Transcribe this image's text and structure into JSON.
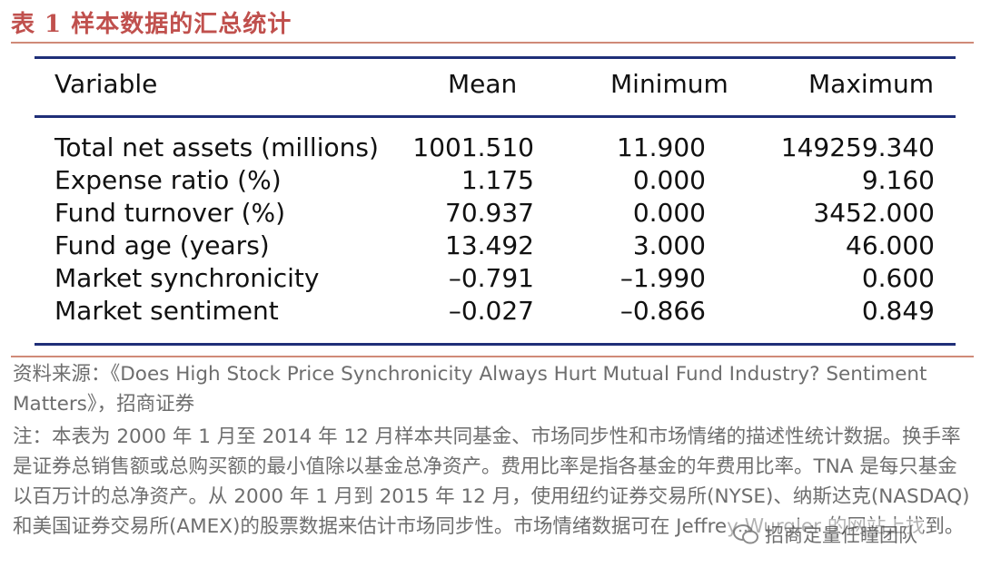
{
  "title": "表 1  样本数据的汇总统计",
  "table": {
    "headers": [
      "Variable",
      "Mean",
      "Minimum",
      "Maximum"
    ],
    "rows": [
      {
        "variable": "Total net assets (millions)",
        "mean": "1001.510",
        "min": "11.900",
        "max": "149259.340"
      },
      {
        "variable": "Expense ratio (%)",
        "mean": "1.175",
        "min": "0.000",
        "max": "9.160"
      },
      {
        "variable": "Fund turnover (%)",
        "mean": "70.937",
        "min": "0.000",
        "max": "3452.000"
      },
      {
        "variable": "Fund age (years)",
        "mean": "13.492",
        "min": "3.000",
        "max": "46.000"
      },
      {
        "variable": "Market synchronicity",
        "mean": "–0.791",
        "min": "–1.990",
        "max": "0.600"
      },
      {
        "variable": "Market sentiment",
        "mean": "–0.027",
        "min": "–0.866",
        "max": "0.849"
      }
    ]
  },
  "source": "资料来源：《Does High Stock Price Synchronicity Always Hurt Mutual Fund Industry? Sentiment Matters》，招商证券",
  "note": "注：本表为 2000 年 1 月至 2014 年 12 月样本共同基金、市场同步性和市场情绪的描述性统计数据。换手率是证券总销售额或总购买额的最小值除以基金总净资产。费用比率是指各基金的年费用比率。TNA 是每只基金以百万计的总净资产。从 2000 年 1 月到 2015 年 12 月，使用纽约证券交易所(NYSE)、纳斯达克(NASDAQ)和美国证券交易所(AMEX)的股票数据来估计市场同步性。市场情绪数据可在 Jeffrey Wurgler 的网站上找到。",
  "watermark": "招商定量任瞳团队",
  "colors": {
    "title": "#c0504d",
    "rule": "#1f2f78",
    "note": "#6e6e6e"
  }
}
